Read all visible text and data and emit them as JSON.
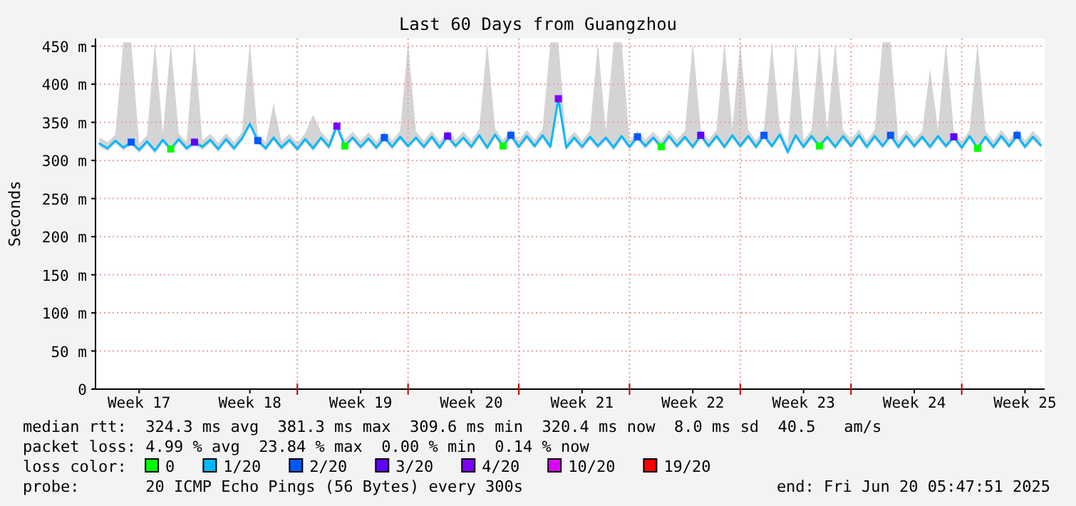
{
  "chart_data": {
    "type": "line",
    "title": "Last 60 Days from Guangzhou",
    "ylabel": "Seconds",
    "x": [
      "2025-04-21T12:00",
      "2025-04-22T00:00",
      "2025-04-22T12:00",
      "2025-04-23T00:00",
      "2025-04-23T12:00",
      "2025-04-24T00:00",
      "2025-04-24T12:00",
      "2025-04-25T00:00",
      "2025-04-25T12:00",
      "2025-04-26T00:00",
      "2025-04-26T12:00",
      "2025-04-27T00:00",
      "2025-04-27T12:00",
      "2025-04-28T00:00",
      "2025-04-28T12:00",
      "2025-04-29T00:00",
      "2025-04-29T12:00",
      "2025-04-30T00:00",
      "2025-04-30T12:00",
      "2025-05-01T00:00",
      "2025-05-01T12:00",
      "2025-05-02T00:00",
      "2025-05-02T12:00",
      "2025-05-03T00:00",
      "2025-05-03T12:00",
      "2025-05-04T00:00",
      "2025-05-04T12:00",
      "2025-05-05T00:00",
      "2025-05-05T12:00",
      "2025-05-06T00:00",
      "2025-05-06T12:00",
      "2025-05-07T00:00",
      "2025-05-07T12:00",
      "2025-05-08T00:00",
      "2025-05-08T12:00",
      "2025-05-09T00:00",
      "2025-05-09T12:00",
      "2025-05-10T00:00",
      "2025-05-10T12:00",
      "2025-05-11T00:00",
      "2025-05-11T12:00",
      "2025-05-12T00:00",
      "2025-05-12T12:00",
      "2025-05-13T00:00",
      "2025-05-13T12:00",
      "2025-05-14T00:00",
      "2025-05-14T12:00",
      "2025-05-15T00:00",
      "2025-05-15T12:00",
      "2025-05-16T00:00",
      "2025-05-16T12:00",
      "2025-05-17T00:00",
      "2025-05-17T12:00",
      "2025-05-18T00:00",
      "2025-05-18T12:00",
      "2025-05-19T00:00",
      "2025-05-19T12:00",
      "2025-05-20T00:00",
      "2025-05-20T12:00",
      "2025-05-21T00:00",
      "2025-05-21T12:00",
      "2025-05-22T00:00",
      "2025-05-22T12:00",
      "2025-05-23T00:00",
      "2025-05-23T12:00",
      "2025-05-24T00:00",
      "2025-05-24T12:00",
      "2025-05-25T00:00",
      "2025-05-25T12:00",
      "2025-05-26T00:00",
      "2025-05-26T12:00",
      "2025-05-27T00:00",
      "2025-05-27T12:00",
      "2025-05-28T00:00",
      "2025-05-28T12:00",
      "2025-05-29T00:00",
      "2025-05-29T12:00",
      "2025-05-30T00:00",
      "2025-05-30T12:00",
      "2025-05-31T00:00",
      "2025-05-31T12:00",
      "2025-06-01T00:00",
      "2025-06-01T12:00",
      "2025-06-02T00:00",
      "2025-06-02T12:00",
      "2025-06-03T00:00",
      "2025-06-03T12:00",
      "2025-06-04T00:00",
      "2025-06-04T12:00",
      "2025-06-05T00:00",
      "2025-06-05T12:00",
      "2025-06-06T00:00",
      "2025-06-06T12:00",
      "2025-06-07T00:00",
      "2025-06-07T12:00",
      "2025-06-08T00:00",
      "2025-06-08T12:00",
      "2025-06-09T00:00",
      "2025-06-09T12:00",
      "2025-06-10T00:00",
      "2025-06-10T12:00",
      "2025-06-11T00:00",
      "2025-06-11T12:00",
      "2025-06-12T00:00",
      "2025-06-12T12:00",
      "2025-06-13T00:00",
      "2025-06-13T12:00",
      "2025-06-14T00:00",
      "2025-06-14T12:00",
      "2025-06-15T00:00",
      "2025-06-15T12:00",
      "2025-06-16T00:00",
      "2025-06-16T12:00",
      "2025-06-17T00:00",
      "2025-06-17T12:00",
      "2025-06-18T00:00",
      "2025-06-18T12:00",
      "2025-06-19T00:00",
      "2025-06-19T12:00",
      "2025-06-20T00:00"
    ],
    "series": [
      {
        "name": "0",
        "type": "scatter",
        "color": "#00ff00",
        "x": [
          "2025-04-26T00:00",
          "2025-05-07T00:00",
          "2025-05-17T00:00",
          "2025-05-27T00:00",
          "2025-06-06T00:00",
          "2025-06-16T00:00"
        ],
        "values": [
          315,
          319,
          319,
          318,
          319,
          316
        ]
      },
      {
        "name": "1/20",
        "color": "#00b8ff",
        "values": [
          322,
          316,
          326,
          317,
          324,
          314,
          325,
          313,
          327,
          315,
          328,
          316,
          324,
          318,
          327,
          315,
          328,
          316,
          329,
          348,
          326,
          316,
          330,
          317,
          327,
          315,
          328,
          316,
          330,
          318,
          345,
          319,
          330,
          318,
          329,
          317,
          330,
          318,
          331,
          319,
          330,
          318,
          331,
          317,
          332,
          319,
          330,
          318,
          333,
          317,
          334,
          319,
          333,
          318,
          332,
          319,
          333,
          318,
          381,
          317,
          330,
          318,
          331,
          319,
          330,
          317,
          332,
          318,
          331,
          319,
          330,
          318,
          332,
          319,
          331,
          318,
          333,
          319,
          332,
          318,
          333,
          319,
          332,
          318,
          333,
          319,
          334,
          311,
          333,
          318,
          332,
          319,
          331,
          318,
          332,
          319,
          333,
          318,
          332,
          319,
          333,
          318,
          332,
          319,
          331,
          318,
          332,
          319,
          331,
          317,
          332,
          316,
          331,
          318,
          332,
          319,
          333,
          318,
          331,
          320
        ],
        "lower": [
          318,
          312,
          322,
          313,
          320,
          310,
          321,
          309,
          323,
          311,
          324,
          312,
          320,
          314,
          323,
          311,
          324,
          312,
          325,
          344,
          322,
          312,
          326,
          313,
          323,
          311,
          324,
          312,
          326,
          314,
          341,
          315,
          326,
          314,
          325,
          313,
          326,
          314,
          327,
          315,
          326,
          314,
          327,
          313,
          328,
          315,
          326,
          314,
          329,
          313,
          330,
          315,
          329,
          314,
          328,
          315,
          329,
          314,
          377,
          313,
          326,
          314,
          327,
          315,
          326,
          313,
          328,
          314,
          327,
          315,
          326,
          314,
          328,
          315,
          327,
          314,
          329,
          315,
          328,
          314,
          329,
          315,
          328,
          314,
          329,
          315,
          330,
          307,
          329,
          314,
          328,
          315,
          327,
          314,
          328,
          315,
          329,
          314,
          328,
          315,
          329,
          314,
          328,
          315,
          327,
          314,
          328,
          315,
          327,
          313,
          328,
          312,
          327,
          314,
          328,
          315,
          329,
          314,
          327,
          316
        ],
        "upper": [
          330,
          324,
          334,
          455,
          455,
          322,
          333,
          455,
          335,
          455,
          336,
          324,
          455,
          326,
          335,
          323,
          336,
          324,
          337,
          455,
          334,
          324,
          375,
          325,
          335,
          323,
          336,
          360,
          338,
          326,
          353,
          327,
          338,
          326,
          337,
          325,
          338,
          326,
          339,
          455,
          338,
          326,
          339,
          325,
          340,
          327,
          338,
          326,
          341,
          455,
          342,
          327,
          341,
          326,
          340,
          327,
          341,
          455,
          455,
          325,
          338,
          326,
          339,
          455,
          338,
          455,
          455,
          326,
          339,
          327,
          338,
          326,
          340,
          327,
          339,
          455,
          341,
          327,
          340,
          455,
          341,
          455,
          340,
          326,
          341,
          455,
          342,
          319,
          455,
          326,
          340,
          455,
          339,
          455,
          340,
          327,
          341,
          326,
          340,
          455,
          455,
          326,
          340,
          327,
          339,
          420,
          340,
          455,
          339,
          325,
          340,
          455,
          339,
          326,
          340,
          327,
          341,
          326,
          339,
          328
        ]
      },
      {
        "name": "2/20",
        "type": "scatter",
        "color": "#0059ff",
        "x": [
          "2025-04-23T12:00",
          "2025-05-01T12:00",
          "2025-05-09T12:00",
          "2025-05-17T12:00",
          "2025-05-25T12:00",
          "2025-06-02T12:00",
          "2025-06-10T12:00",
          "2025-06-18T12:00"
        ],
        "values": [
          324,
          326,
          330,
          333,
          331,
          333,
          333,
          333
        ]
      },
      {
        "name": "3/20",
        "type": "scatter",
        "color": "#5e00ff",
        "x": [
          "2025-04-27T12:00",
          "2025-05-13T12:00",
          "2025-05-29T12:00",
          "2025-06-14T12:00"
        ],
        "values": [
          324,
          332,
          333,
          331
        ]
      },
      {
        "name": "4/20",
        "type": "scatter",
        "color": "#7e00ff",
        "x": [
          "2025-05-06T12:00",
          "2025-05-20T12:00"
        ],
        "values": [
          345,
          381
        ]
      },
      {
        "name": "10/20",
        "color": "#dd00ff",
        "values": [
          null,
          null,
          null,
          null,
          null,
          null,
          null,
          null,
          null,
          null,
          null,
          null,
          null,
          null,
          null,
          null,
          null,
          null,
          null,
          null,
          null,
          null,
          null,
          null,
          null,
          null,
          null,
          null,
          null,
          null,
          null,
          null,
          null,
          null,
          null,
          null,
          null,
          null,
          null,
          null,
          null,
          null,
          null,
          null,
          null,
          null,
          null,
          null,
          null,
          null,
          null,
          null,
          null,
          null,
          null,
          null,
          null,
          null,
          null,
          null,
          null,
          null,
          null,
          null,
          null,
          null,
          null,
          null,
          null,
          null,
          null,
          null,
          null,
          null,
          null,
          null,
          null,
          null,
          null,
          null,
          null,
          null,
          null,
          null,
          null,
          null,
          null,
          null,
          null,
          null,
          null,
          null,
          null,
          null,
          null,
          null,
          null,
          null,
          null,
          null,
          null,
          null,
          null,
          null,
          null,
          null,
          null,
          null,
          null,
          null,
          null,
          null,
          null,
          null,
          null,
          null,
          null,
          null,
          null,
          null
        ]
      },
      {
        "name": "19/20",
        "color": "#ff0000",
        "values": [
          null,
          null,
          null,
          null,
          null,
          null,
          null,
          null,
          null,
          null,
          null,
          null,
          null,
          null,
          null,
          null,
          null,
          null,
          null,
          null,
          null,
          null,
          null,
          null,
          null,
          null,
          null,
          null,
          null,
          null,
          null,
          null,
          null,
          null,
          null,
          null,
          null,
          null,
          null,
          null,
          null,
          null,
          null,
          null,
          null,
          null,
          null,
          null,
          null,
          null,
          null,
          null,
          null,
          null,
          null,
          null,
          null,
          null,
          null,
          null,
          null,
          null,
          null,
          null,
          null,
          null,
          null,
          null,
          null,
          null,
          null,
          null,
          null,
          null,
          null,
          null,
          null,
          null,
          null,
          null,
          null,
          null,
          null,
          null,
          null,
          null,
          null,
          null,
          null,
          null,
          null,
          null,
          null,
          null,
          null,
          null,
          null,
          null,
          null,
          null,
          null,
          null,
          null,
          null,
          null,
          null,
          null,
          null,
          null,
          null,
          null,
          null,
          null,
          null,
          null,
          null,
          null,
          null,
          null,
          null
        ]
      }
    ],
    "xlim": [
      "2025-04-21T05:47",
      "2025-06-20T05:47"
    ],
    "xticks": [
      {
        "value": "2025-04-24",
        "label": "Week 17"
      },
      {
        "value": "2025-05-01",
        "label": "Week 18"
      },
      {
        "value": "2025-05-04",
        "label": null
      },
      {
        "value": "2025-05-08",
        "label": "Week 19"
      },
      {
        "value": "2025-05-11",
        "label": null
      },
      {
        "value": "2025-05-15",
        "label": "Week 20"
      },
      {
        "value": "2025-05-18",
        "label": null
      },
      {
        "value": "2025-05-22",
        "label": "Week 21"
      },
      {
        "value": "2025-05-25",
        "label": null
      },
      {
        "value": "2025-05-29",
        "label": "Week 22"
      },
      {
        "value": "2025-06-01",
        "label": null
      },
      {
        "value": "2025-06-05",
        "label": "Week 23"
      },
      {
        "value": "2025-06-08",
        "label": null
      },
      {
        "value": "2025-06-12",
        "label": "Week 24"
      },
      {
        "value": "2025-06-15",
        "label": null
      },
      {
        "value": "2025-06-19",
        "label": "Week 25"
      }
    ],
    "ylim": [
      0,
      460
    ],
    "yticks": [
      0,
      {
        "value": 50,
        "label": "50 m"
      },
      {
        "value": 100,
        "label": "100 m"
      },
      {
        "value": 150,
        "label": "150 m"
      },
      {
        "value": 200,
        "label": "200 m"
      },
      {
        "value": 250,
        "label": "250 m"
      },
      {
        "value": 300,
        "label": "300 m"
      },
      {
        "value": 350,
        "label": "350 m"
      },
      {
        "value": 400,
        "label": "400 m"
      },
      {
        "value": 450,
        "label": "450 m"
      }
    ],
    "grid": true,
    "legend": "bottom",
    "legend_title": "loss color:",
    "annotations": [
      "median rtt:  324.3 ms avg  381.3 ms max  309.6 ms min  320.4 ms now  8.0 ms sd  40.5   am/s",
      "packet loss: 4.99 % avg  23.84 % max  0.00 % min  0.14 % now",
      "probe:       20 ICMP Echo Pings (56 Bytes) every 300s",
      "end: Fri Jun 20 05:47:51 2025"
    ]
  }
}
